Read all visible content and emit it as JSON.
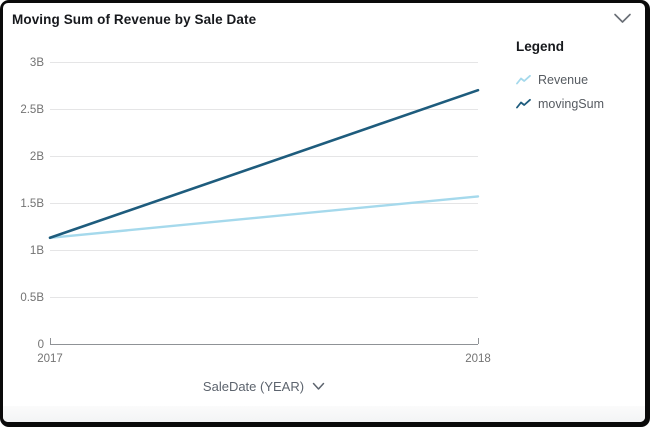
{
  "header": {
    "title": "Moving Sum of Revenue by Sale Date",
    "menu_icon": "chevron-down-icon"
  },
  "legend": {
    "title": "Legend",
    "items": [
      {
        "label": "Revenue",
        "color": "#a5d9ec",
        "icon": "line-series-icon"
      },
      {
        "label": "movingSum",
        "color": "#1e5c7d",
        "icon": "line-series-icon"
      }
    ]
  },
  "x_axis": {
    "title": "SaleDate (YEAR)",
    "dropdown_icon": "chevron-down-icon"
  },
  "chart_data": {
    "type": "line",
    "title": "Moving Sum of Revenue by Sale Date",
    "xlabel": "SaleDate (YEAR)",
    "ylabel": "",
    "unit": "billions",
    "x": [
      2017,
      2018
    ],
    "x_tick_labels": [
      "2017",
      "2018"
    ],
    "series": [
      {
        "name": "Revenue",
        "values_billions": [
          1.13,
          1.57
        ],
        "color": "#a5d9ec",
        "stroke_width": 2.4
      },
      {
        "name": "movingSum",
        "values_billions": [
          1.13,
          2.7
        ],
        "color": "#1e5c7d",
        "stroke_width": 2.6
      }
    ],
    "ylim_billions": [
      0,
      3
    ],
    "y_ticks_billions": [
      0,
      0.5,
      1,
      1.5,
      2,
      2.5,
      3
    ],
    "y_tick_labels": [
      "0",
      "0.5B",
      "1B",
      "1.5B",
      "2B",
      "2.5B",
      "3B"
    ],
    "grid": "horizontal",
    "legend_position": "right",
    "styles": {
      "gridline_color": "#e5e5e6",
      "axis_line_color": "#8f9296",
      "tick_label_color": "#737373",
      "icon_color": "#696e75"
    }
  }
}
